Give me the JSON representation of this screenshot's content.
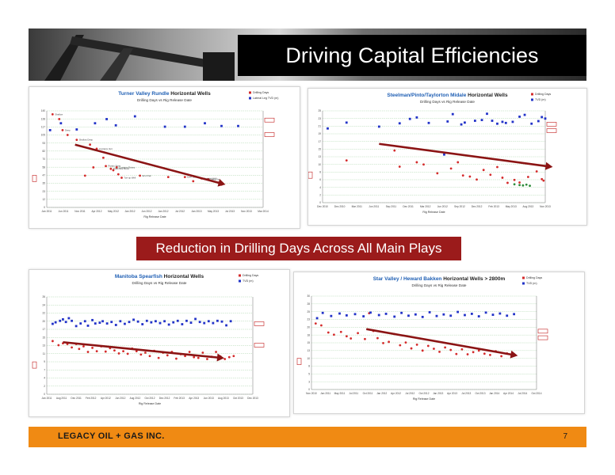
{
  "slide": {
    "title": "Driving Capital Efficiencies",
    "banner": "Reduction in Drilling Days Across All Main Plays",
    "company": "LEGACY OIL + GAS INC.",
    "page_number": "7"
  },
  "colors": {
    "drill": "#d42b2b",
    "depth": "#2233c8",
    "trend": "#8b1414",
    "title_blue": "#1f5fb4"
  },
  "chart_data": [
    {
      "type": "scatter",
      "title": "Turner Valley Rundle",
      "title_suffix": " Horizontal Wells",
      "subtitle": "Drilling Days vs Rig Release Date",
      "legend": [
        "Drilling Days",
        "Lateral Leg TVD (m)"
      ],
      "xlabel": "Rig Release Date",
      "x_ticks": [
        "Jan 2011",
        "Jun 2011",
        "Nov 2011",
        "Apr 2012",
        "May 2012",
        "Jan 2012",
        "Jun 2012",
        "Jan 2012",
        "Jul 2012",
        "Jan 2013",
        "May 2013",
        "Jul 2013",
        "Nov 2013",
        "Mar 2014"
      ],
      "ylim": [
        0,
        140
      ],
      "series": [
        {
          "points": [
            [
              0.35,
              135
            ],
            [
              0.75,
              128
            ],
            [
              0.95,
              112
            ],
            [
              1.25,
              105
            ],
            [
              1.8,
              98
            ],
            [
              2.6,
              91
            ],
            [
              3.0,
              85
            ],
            [
              3.4,
              72
            ],
            [
              3.55,
              60
            ],
            [
              2.8,
              58
            ],
            [
              3.85,
              56
            ],
            [
              4.0,
              54
            ],
            [
              4.2,
              58
            ],
            [
              4.3,
              48
            ],
            [
              4.5,
              43
            ],
            [
              2.3,
              46
            ],
            [
              5.6,
              46
            ],
            [
              7.3,
              44
            ],
            [
              8.3,
              44
            ],
            [
              8.8,
              38
            ],
            [
              9.3,
              42
            ],
            [
              10.3,
              36
            ],
            [
              9.7,
              41
            ],
            [
              10.5,
              33
            ]
          ]
        },
        {
          "points": [
            [
              0.2,
              112
            ],
            [
              0.85,
              122
            ],
            [
              1.8,
              113
            ],
            [
              2.9,
              122
            ],
            [
              3.6,
              128
            ],
            [
              4.15,
              119
            ],
            [
              5.3,
              132
            ],
            [
              7.1,
              117
            ],
            [
              8.3,
              117
            ],
            [
              9.5,
              122
            ],
            [
              10.5,
              118
            ],
            [
              11.5,
              118
            ]
          ]
        }
      ],
      "labels": [
        "Shallow",
        "Deep",
        "Shallow Deep",
        "Contains Vert",
        "Rotary Steer",
        "Downhole Motor",
        "Contains Rotary",
        "Toe-up Well",
        "Eco Frac",
        "Ever Sweet",
        "Straight Well",
        "Deep Set"
      ]
    },
    {
      "type": "scatter",
      "title": "Steelman/Pinto/Taylorton Midale",
      "title_suffix": " Horizontal Wells",
      "subtitle": "Drilling Days vs Rig Release Date",
      "legend": [
        "Drilling Days",
        "TVD (m)"
      ],
      "xlabel": "Rig Release Date",
      "x_ticks": [
        "Dec 2010",
        "Dec 2010",
        "Mar 2011",
        "Jun 2011",
        "Sep 2011",
        "Dec 2011",
        "Mar 2012",
        "Jun 2012",
        "Sep 2012",
        "Dec 2012",
        "Feb 2013",
        "May 2013",
        "Aug 2013",
        "Nov 2013"
      ],
      "ylim": [
        0,
        25
      ],
      "series": [
        {
          "points": [
            [
              1.4,
              11.5
            ],
            [
              4.2,
              14.2
            ],
            [
              4.5,
              9.8
            ],
            [
              5.5,
              11
            ],
            [
              5.9,
              10.4
            ],
            [
              6.7,
              8
            ],
            [
              7.5,
              9.3
            ],
            [
              7.9,
              11
            ],
            [
              8.2,
              7.4
            ],
            [
              8.6,
              7.1
            ],
            [
              9.0,
              6.3
            ],
            [
              9.4,
              8.9
            ],
            [
              9.8,
              7.6
            ],
            [
              10.2,
              9.7
            ],
            [
              10.5,
              6.8
            ],
            [
              10.8,
              5.4
            ],
            [
              11.2,
              6.2
            ],
            [
              11.5,
              5.5
            ],
            [
              12.0,
              7.0
            ],
            [
              12.5,
              8.5
            ],
            [
              12.8,
              6.4
            ],
            [
              12.9,
              6.0
            ]
          ]
        },
        {
          "points": [
            [
              0.3,
              20.2
            ],
            [
              1.4,
              21.8
            ],
            [
              3.3,
              20.7
            ],
            [
              4.5,
              21.6
            ],
            [
              5.1,
              22.8
            ],
            [
              5.5,
              23.2
            ],
            [
              6.2,
              21.7
            ],
            [
              7.1,
              13.1
            ],
            [
              7.3,
              22.1
            ],
            [
              7.6,
              24.1
            ],
            [
              8.1,
              21.3
            ],
            [
              8.3,
              21.8
            ],
            [
              8.9,
              22.3
            ],
            [
              9.3,
              22.5
            ],
            [
              9.6,
              24.2
            ],
            [
              9.9,
              22.3
            ],
            [
              10.2,
              21.5
            ],
            [
              10.5,
              22.0
            ],
            [
              10.7,
              21.7
            ],
            [
              11.1,
              22.0
            ],
            [
              11.5,
              23.4
            ],
            [
              11.8,
              23.9
            ],
            [
              12.2,
              21.5
            ],
            [
              12.6,
              22.2
            ],
            [
              12.8,
              23.3
            ],
            [
              13.0,
              22.9
            ]
          ]
        },
        {
          "points": [
            [
              11.2,
              5.0
            ],
            [
              11.5,
              4.8
            ],
            [
              11.7,
              4.7
            ],
            [
              11.9,
              4.9
            ],
            [
              12.1,
              4.6
            ]
          ]
        }
      ]
    },
    {
      "type": "scatter",
      "title": "Manitoba Spearfish",
      "title_suffix": " Horizontal Wells",
      "subtitle": "Drilling Days vs Rig Release Date",
      "legend": [
        "Drilling Days",
        "TVD (m)"
      ],
      "xlabel": "Rig Release Date",
      "x_ticks": [
        "Jan 2011",
        "Aug 2011",
        "Dec 2011",
        "Feb 2012",
        "Apr 2012",
        "Jun 2012",
        "Aug 2012",
        "Oct 2012",
        "Dec 2012",
        "Feb 2013",
        "Apr 2013",
        "Jun 2013",
        "Aug 2013",
        "Oct 2013",
        "Dec 2013"
      ],
      "ylim": [
        0,
        26
      ],
      "series": [
        {
          "points": [
            [
              0.4,
              14.2
            ],
            [
              0.8,
              13.1
            ],
            [
              1.1,
              13.6
            ],
            [
              1.4,
              13.4
            ],
            [
              1.7,
              12.5
            ],
            [
              2.0,
              13.4
            ],
            [
              2.2,
              12.1
            ],
            [
              2.5,
              12.8
            ],
            [
              2.8,
              11.3
            ],
            [
              3.1,
              12.4
            ],
            [
              3.4,
              11.5
            ],
            [
              3.7,
              12.8
            ],
            [
              4.0,
              11.4
            ],
            [
              4.3,
              12.3
            ],
            [
              4.6,
              11.7
            ],
            [
              4.9,
              10.9
            ],
            [
              5.2,
              11.5
            ],
            [
              5.5,
              10.8
            ],
            [
              5.8,
              12.2
            ],
            [
              6.1,
              11.5
            ],
            [
              6.4,
              10.6
            ],
            [
              6.7,
              11.1
            ],
            [
              7.0,
              10.2
            ],
            [
              7.3,
              11.6
            ],
            [
              7.6,
              9.7
            ],
            [
              7.9,
              11.1
            ],
            [
              8.2,
              10.4
            ],
            [
              8.5,
              11.3
            ],
            [
              8.8,
              9.5
            ],
            [
              9.1,
              10.7
            ],
            [
              9.4,
              10.2
            ],
            [
              9.7,
              11.3
            ],
            [
              10.0,
              9.9
            ],
            [
              10.3,
              9.7
            ],
            [
              10.6,
              11.1
            ],
            [
              10.9,
              9.4
            ],
            [
              11.2,
              10.0
            ],
            [
              11.5,
              11.3
            ],
            [
              11.8,
              10.1
            ],
            [
              12.1,
              9.4
            ],
            [
              12.4,
              9.9
            ],
            [
              12.7,
              10.2
            ]
          ]
        },
        {
          "points": [
            [
              0.4,
              18.8
            ],
            [
              0.6,
              19.2
            ],
            [
              0.9,
              19.6
            ],
            [
              1.1,
              20.0
            ],
            [
              1.3,
              19.3
            ],
            [
              1.5,
              20.3
            ],
            [
              1.7,
              19.6
            ],
            [
              2.0,
              18.2
            ],
            [
              2.3,
              18.9
            ],
            [
              2.6,
              19.5
            ],
            [
              2.8,
              18.3
            ],
            [
              3.1,
              19.8
            ],
            [
              3.3,
              18.9
            ],
            [
              3.6,
              19.1
            ],
            [
              3.8,
              19.5
            ],
            [
              4.1,
              18.9
            ],
            [
              4.4,
              19.3
            ],
            [
              4.7,
              18.5
            ],
            [
              5.0,
              19.5
            ],
            [
              5.3,
              18.8
            ],
            [
              5.6,
              19.3
            ],
            [
              5.9,
              19.9
            ],
            [
              6.2,
              19.4
            ],
            [
              6.5,
              18.7
            ],
            [
              6.8,
              19.6
            ],
            [
              7.1,
              19.2
            ],
            [
              7.4,
              19.5
            ],
            [
              7.7,
              19.0
            ],
            [
              8.0,
              19.5
            ],
            [
              8.3,
              18.6
            ],
            [
              8.6,
              19.2
            ],
            [
              8.9,
              19.6
            ],
            [
              9.2,
              18.7
            ],
            [
              9.5,
              19.6
            ],
            [
              9.8,
              19.1
            ],
            [
              10.1,
              20.1
            ],
            [
              10.4,
              19.3
            ],
            [
              10.7,
              19.0
            ],
            [
              11.0,
              19.5
            ],
            [
              11.3,
              19.0
            ],
            [
              11.6,
              19.6
            ],
            [
              11.9,
              19.4
            ],
            [
              12.2,
              18.4
            ],
            [
              12.5,
              19.5
            ]
          ]
        }
      ]
    },
    {
      "type": "scatter",
      "title": "Star Valley / Heward Bakken",
      "title_suffix": " Horizontal Wells > 2800m",
      "subtitle": "Drilling Days vs Rig Release Date",
      "legend": [
        "Drilling Days",
        "TVD (m)"
      ],
      "xlabel": "Rig Release Date",
      "x_ticks": [
        "Nov 2010",
        "Jan 2011",
        "May 2011",
        "Jul 2011",
        "Oct 2011",
        "Jan 2012",
        "Apr 2012",
        "Jul 2012",
        "Oct 2012",
        "Jan 2013",
        "Apr 2013",
        "Jul 2013",
        "Oct 2013",
        "Jan 2014",
        "Apr 2014",
        "Jul 2014",
        "Oct 2014"
      ],
      "ylim": [
        0,
        30
      ],
      "series": [
        {
          "points": [
            [
              0.3,
              21.2
            ],
            [
              0.7,
              20.6
            ],
            [
              1.2,
              18.3
            ],
            [
              1.6,
              17.6
            ],
            [
              2.1,
              18.5
            ],
            [
              2.5,
              17.1
            ],
            [
              2.8,
              16.4
            ],
            [
              3.3,
              18.1
            ],
            [
              3.8,
              16.2
            ],
            [
              4.1,
              24.5
            ],
            [
              4.4,
              18.8
            ],
            [
              4.7,
              16.5
            ],
            [
              5.1,
              14.9
            ],
            [
              5.5,
              15.3
            ],
            [
              5.9,
              17.8
            ],
            [
              6.3,
              14.2
            ],
            [
              6.7,
              15.1
            ],
            [
              7.1,
              13.2
            ],
            [
              7.5,
              14.4
            ],
            [
              7.9,
              12.5
            ],
            [
              8.3,
              14.0
            ],
            [
              8.7,
              13.1
            ],
            [
              9.1,
              12.1
            ],
            [
              9.5,
              13.5
            ],
            [
              9.9,
              12.7
            ],
            [
              10.3,
              11.4
            ],
            [
              10.7,
              12.9
            ],
            [
              11.1,
              11.3
            ],
            [
              11.5,
              12.0
            ],
            [
              11.9,
              12.5
            ],
            [
              12.3,
              11.5
            ],
            [
              12.7,
              11.1
            ],
            [
              13.1,
              12.3
            ],
            [
              13.5,
              10.7
            ],
            [
              13.9,
              11.6
            ],
            [
              14.3,
              10.9
            ]
          ]
        },
        {
          "points": [
            [
              0.4,
              22.9
            ],
            [
              0.8,
              24.6
            ],
            [
              1.4,
              23.6
            ],
            [
              2.0,
              24.4
            ],
            [
              2.5,
              23.8
            ],
            [
              3.1,
              24.2
            ],
            [
              3.7,
              23.5
            ],
            [
              4.2,
              24.7
            ],
            [
              4.8,
              23.9
            ],
            [
              5.3,
              24.3
            ],
            [
              5.9,
              23.4
            ],
            [
              6.4,
              24.6
            ],
            [
              6.9,
              23.7
            ],
            [
              7.4,
              24.1
            ],
            [
              7.9,
              23.3
            ],
            [
              8.4,
              24.8
            ],
            [
              8.9,
              23.6
            ],
            [
              9.4,
              24.1
            ],
            [
              9.9,
              23.7
            ],
            [
              10.4,
              24.9
            ],
            [
              10.9,
              23.9
            ],
            [
              11.4,
              24.3
            ],
            [
              11.9,
              23.5
            ],
            [
              12.4,
              24.7
            ],
            [
              12.9,
              24.0
            ],
            [
              13.4,
              24.4
            ],
            [
              13.9,
              23.7
            ],
            [
              14.4,
              24.2
            ]
          ]
        }
      ]
    }
  ]
}
